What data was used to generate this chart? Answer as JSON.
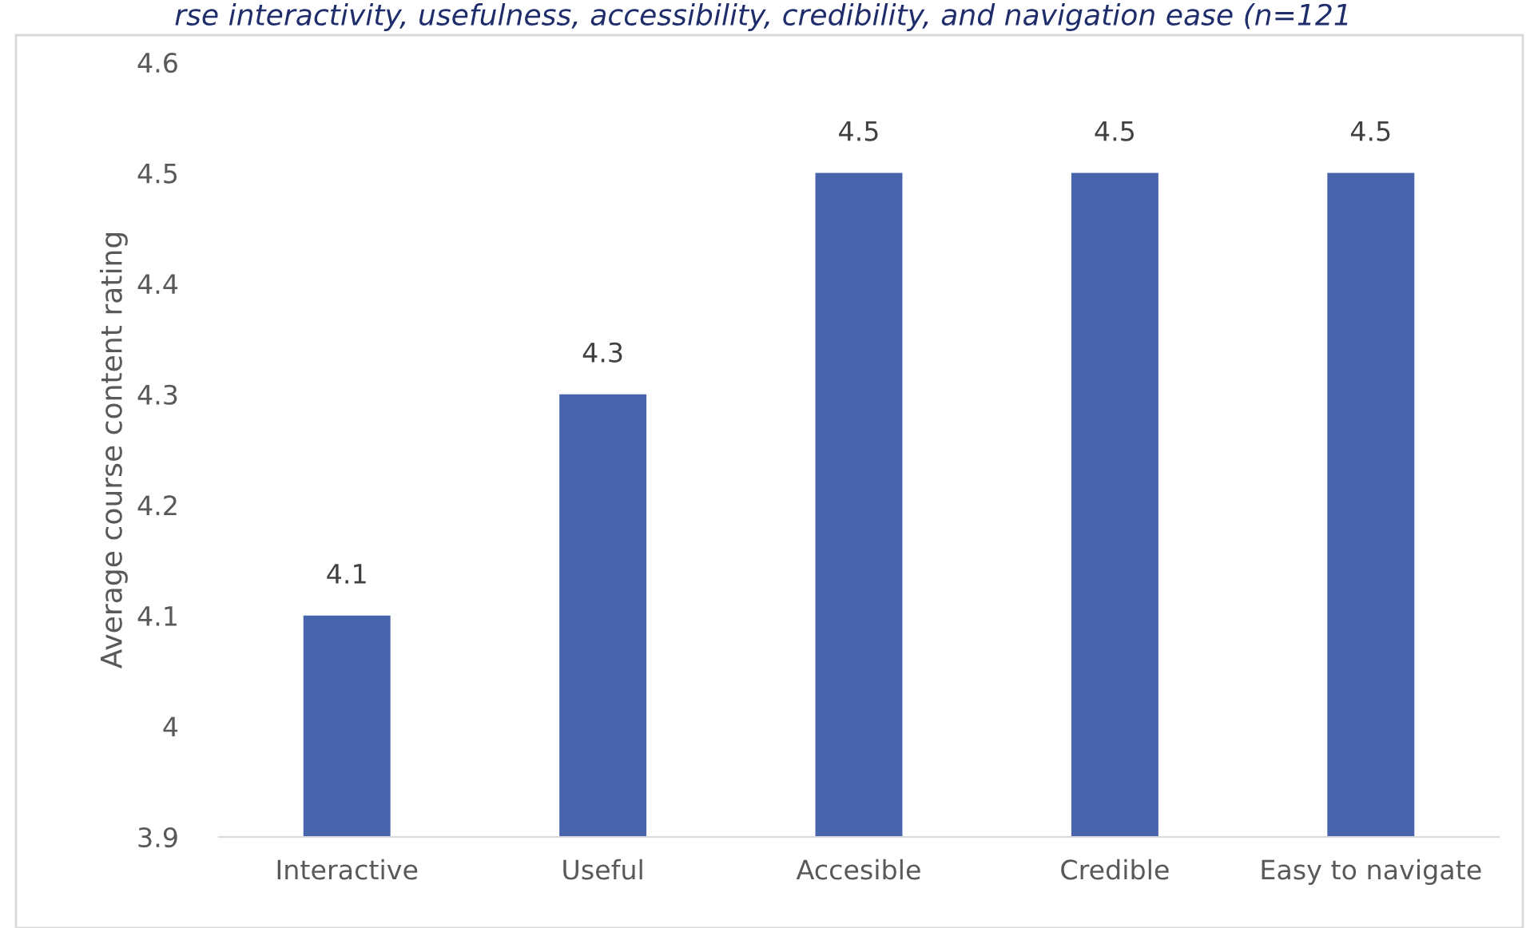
{
  "chart_data": {
    "type": "bar",
    "title": "rse interactivity, usefulness, accessibility, credibility, and navigation ease (n=121",
    "ylabel": "Average course content rating",
    "categories": [
      "Interactive",
      "Useful",
      "Accesible",
      "Credible",
      "Easy to navigate"
    ],
    "values": [
      4.1,
      4.3,
      4.5,
      4.5,
      4.5
    ],
    "color": "#4864ac",
    "ylim": [
      3.9,
      4.6
    ],
    "yticks": [
      3.9,
      4,
      4.1,
      4.2,
      4.3,
      4.4,
      4.5,
      4.6
    ],
    "grid": false,
    "data_labels": true
  }
}
